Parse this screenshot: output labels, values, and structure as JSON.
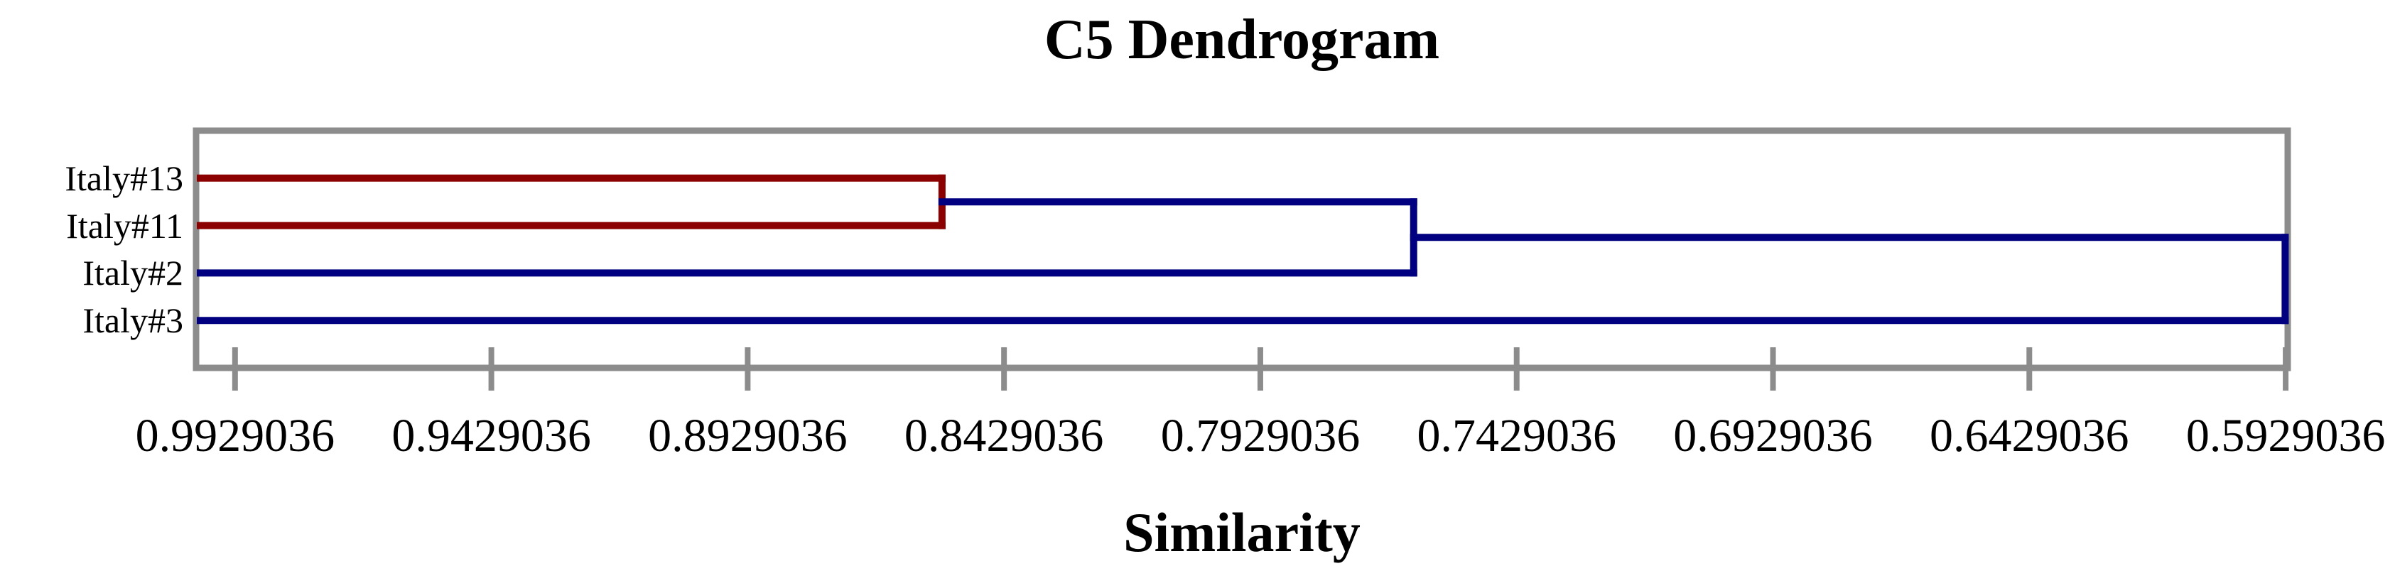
{
  "chart_data": {
    "type": "dendrogram",
    "orientation": "horizontal",
    "title": "C5 Dendrogram",
    "xlabel": "Similarity",
    "leaves": [
      "Italy#13",
      "Italy#11",
      "Italy#2",
      "Italy#3"
    ],
    "x_tick_labels": [
      "0.9929036",
      "0.9429036",
      "0.8929036",
      "0.8429036",
      "0.7929036",
      "0.7429036",
      "0.6929036",
      "0.6429036",
      "0.5929036"
    ],
    "x_tick_values": [
      0.9929036,
      0.9429036,
      0.8929036,
      0.8429036,
      0.7929036,
      0.7429036,
      0.6929036,
      0.6429036,
      0.5929036
    ],
    "xlim": [
      1.0005,
      0.5925
    ],
    "axis_reversed": true,
    "merges": [
      {
        "join": [
          "Italy#13",
          "Italy#11"
        ],
        "similarity": 0.855,
        "color": "#8b0000"
      },
      {
        "join": [
          [
            "Italy#13",
            "Italy#11"
          ],
          "Italy#2"
        ],
        "similarity": 0.763,
        "color": "#000080"
      },
      {
        "join": [
          [
            "Italy#13",
            "Italy#11",
            "Italy#2"
          ],
          "Italy#3"
        ],
        "similarity": 0.593,
        "color": "#000080"
      }
    ],
    "tree": {
      "similarity": 0.593,
      "color": "#000080",
      "children": [
        {
          "similarity": 0.763,
          "color": "#000080",
          "link": "#000080",
          "children": [
            {
              "similarity": 0.855,
              "color": "#8b0000",
              "link": "#000080",
              "children": [
                {
                  "leaf": "Italy#13",
                  "color": "#8b0000"
                },
                {
                  "leaf": "Italy#11",
                  "color": "#8b0000"
                }
              ]
            },
            {
              "leaf": "Italy#2",
              "color": "#000080"
            }
          ]
        },
        {
          "leaf": "Italy#3",
          "color": "#000080"
        }
      ]
    },
    "colors": {
      "cluster_red": "#8b0000",
      "cluster_blue": "#000080",
      "axis_gray": "#8c8c8c",
      "text": "#000000",
      "background": "#ffffff"
    }
  }
}
